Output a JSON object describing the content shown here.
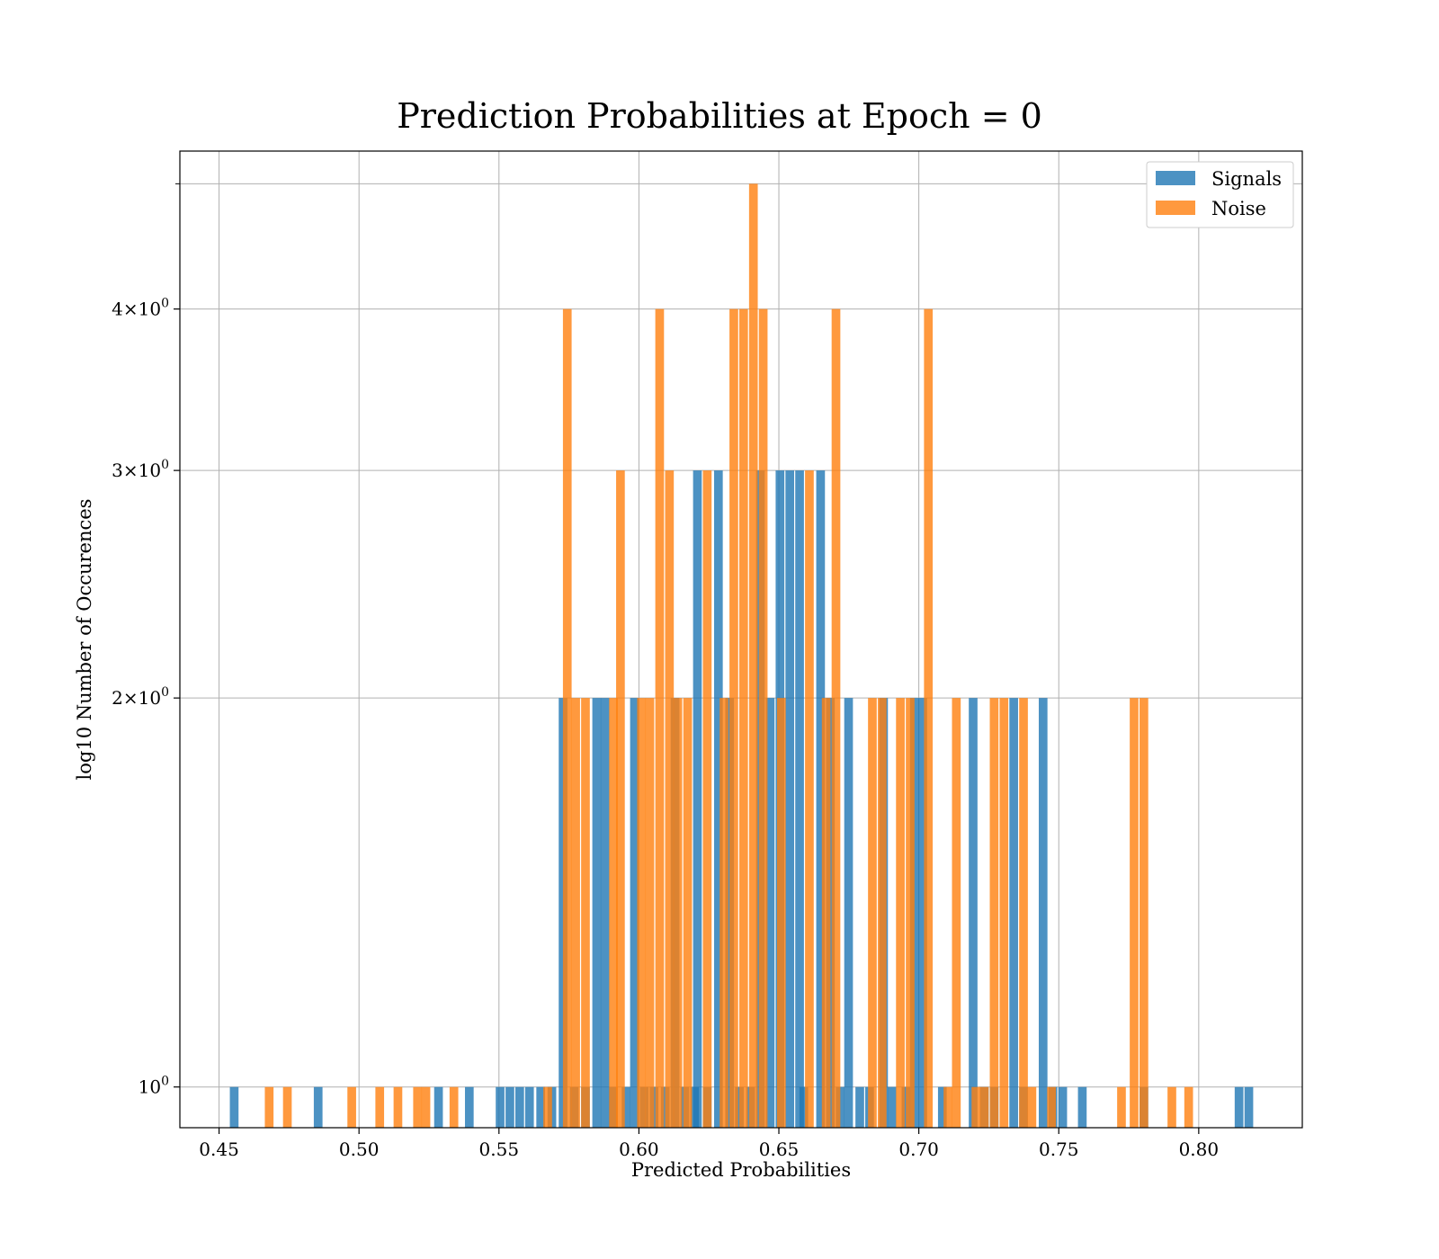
{
  "chart_data": {
    "type": "bar",
    "title": "Prediction Probabilities at Epoch = 0",
    "xlabel": "Predicted Probabilities",
    "ylabel": "log10 Number of Occurences",
    "xlim": [
      0.436,
      0.837
    ],
    "ylim": [
      0.93,
      5.3
    ],
    "yscale": "log",
    "grid": true,
    "legend_position": "top-right",
    "bin_width": 0.0033,
    "x_ticks": [
      0.45,
      0.5,
      0.55,
      0.6,
      0.65,
      0.7,
      0.75,
      0.8
    ],
    "x_tick_labels": [
      "0.45",
      "0.50",
      "0.55",
      "0.60",
      "0.65",
      "0.70",
      "0.75",
      "0.80"
    ],
    "y_ticks": [
      1,
      2,
      3,
      4
    ],
    "y_tick_labels": [
      {
        "mantissa": "",
        "exp": "0",
        "text": "10"
      },
      {
        "mantissa": "2",
        "exp": "0",
        "text": "×10"
      },
      {
        "mantissa": "3",
        "exp": "0",
        "text": "×10"
      },
      {
        "mantissa": "4",
        "exp": "0",
        "text": "×10"
      }
    ],
    "series": [
      {
        "name": "Signals",
        "color": "#1f77b4",
        "bins": [
          {
            "x": 0.4555,
            "count": 1
          },
          {
            "x": 0.4855,
            "count": 1
          },
          {
            "x": 0.5285,
            "count": 1
          },
          {
            "x": 0.5395,
            "count": 1
          },
          {
            "x": 0.5505,
            "count": 1
          },
          {
            "x": 0.554,
            "count": 1
          },
          {
            "x": 0.5575,
            "count": 1
          },
          {
            "x": 0.561,
            "count": 1
          },
          {
            "x": 0.565,
            "count": 1
          },
          {
            "x": 0.569,
            "count": 1
          },
          {
            "x": 0.573,
            "count": 2
          },
          {
            "x": 0.577,
            "count": 1
          },
          {
            "x": 0.581,
            "count": 1
          },
          {
            "x": 0.585,
            "count": 2
          },
          {
            "x": 0.588,
            "count": 2
          },
          {
            "x": 0.591,
            "count": 1
          },
          {
            "x": 0.5955,
            "count": 1
          },
          {
            "x": 0.5985,
            "count": 2
          },
          {
            "x": 0.602,
            "count": 1
          },
          {
            "x": 0.6055,
            "count": 1
          },
          {
            "x": 0.6095,
            "count": 1
          },
          {
            "x": 0.613,
            "count": 2
          },
          {
            "x": 0.6165,
            "count": 1
          },
          {
            "x": 0.62,
            "count": 1
          },
          {
            "x": 0.621,
            "count": 3
          },
          {
            "x": 0.6245,
            "count": 1
          },
          {
            "x": 0.6285,
            "count": 3
          },
          {
            "x": 0.6325,
            "count": 2
          },
          {
            "x": 0.636,
            "count": 1
          },
          {
            "x": 0.64,
            "count": 1
          },
          {
            "x": 0.6435,
            "count": 3
          },
          {
            "x": 0.647,
            "count": 2
          },
          {
            "x": 0.6505,
            "count": 3
          },
          {
            "x": 0.654,
            "count": 3
          },
          {
            "x": 0.6575,
            "count": 3
          },
          {
            "x": 0.659,
            "count": 1
          },
          {
            "x": 0.665,
            "count": 3
          },
          {
            "x": 0.6685,
            "count": 2
          },
          {
            "x": 0.672,
            "count": 1
          },
          {
            "x": 0.675,
            "count": 2
          },
          {
            "x": 0.679,
            "count": 1
          },
          {
            "x": 0.6825,
            "count": 1
          },
          {
            "x": 0.6875,
            "count": 2
          },
          {
            "x": 0.6905,
            "count": 1
          },
          {
            "x": 0.6955,
            "count": 1
          },
          {
            "x": 0.6985,
            "count": 2
          },
          {
            "x": 0.7015,
            "count": 2
          },
          {
            "x": 0.7085,
            "count": 1
          },
          {
            "x": 0.7195,
            "count": 2
          },
          {
            "x": 0.7235,
            "count": 1
          },
          {
            "x": 0.727,
            "count": 1
          },
          {
            "x": 0.734,
            "count": 2
          },
          {
            "x": 0.7375,
            "count": 1
          },
          {
            "x": 0.7445,
            "count": 2
          },
          {
            "x": 0.748,
            "count": 1
          },
          {
            "x": 0.7515,
            "count": 1
          },
          {
            "x": 0.7585,
            "count": 1
          },
          {
            "x": 0.7805,
            "count": 1
          },
          {
            "x": 0.8145,
            "count": 1
          },
          {
            "x": 0.818,
            "count": 1
          }
        ]
      },
      {
        "name": "Noise",
        "color": "#ff7f0e",
        "bins": [
          {
            "x": 0.468,
            "count": 1
          },
          {
            "x": 0.4745,
            "count": 1
          },
          {
            "x": 0.4975,
            "count": 1
          },
          {
            "x": 0.5075,
            "count": 1
          },
          {
            "x": 0.514,
            "count": 1
          },
          {
            "x": 0.521,
            "count": 1
          },
          {
            "x": 0.524,
            "count": 1
          },
          {
            "x": 0.534,
            "count": 1
          },
          {
            "x": 0.5675,
            "count": 1
          },
          {
            "x": 0.5745,
            "count": 4
          },
          {
            "x": 0.5775,
            "count": 2
          },
          {
            "x": 0.581,
            "count": 2
          },
          {
            "x": 0.591,
            "count": 2
          },
          {
            "x": 0.5935,
            "count": 3
          },
          {
            "x": 0.601,
            "count": 2
          },
          {
            "x": 0.604,
            "count": 2
          },
          {
            "x": 0.6075,
            "count": 4
          },
          {
            "x": 0.611,
            "count": 3
          },
          {
            "x": 0.614,
            "count": 2
          },
          {
            "x": 0.6175,
            "count": 2
          },
          {
            "x": 0.6245,
            "count": 3
          },
          {
            "x": 0.6305,
            "count": 2
          },
          {
            "x": 0.634,
            "count": 4
          },
          {
            "x": 0.6375,
            "count": 4
          },
          {
            "x": 0.641,
            "count": 5
          },
          {
            "x": 0.6445,
            "count": 4
          },
          {
            "x": 0.651,
            "count": 2
          },
          {
            "x": 0.661,
            "count": 3
          },
          {
            "x": 0.667,
            "count": 2
          },
          {
            "x": 0.6705,
            "count": 4
          },
          {
            "x": 0.6835,
            "count": 2
          },
          {
            "x": 0.687,
            "count": 2
          },
          {
            "x": 0.6935,
            "count": 2
          },
          {
            "x": 0.697,
            "count": 2
          },
          {
            "x": 0.7035,
            "count": 4
          },
          {
            "x": 0.7105,
            "count": 1
          },
          {
            "x": 0.7135,
            "count": 2
          },
          {
            "x": 0.7205,
            "count": 1
          },
          {
            "x": 0.7235,
            "count": 1
          },
          {
            "x": 0.727,
            "count": 2
          },
          {
            "x": 0.7305,
            "count": 2
          },
          {
            "x": 0.7375,
            "count": 2
          },
          {
            "x": 0.7405,
            "count": 1
          },
          {
            "x": 0.7475,
            "count": 1
          },
          {
            "x": 0.7725,
            "count": 1
          },
          {
            "x": 0.777,
            "count": 2
          },
          {
            "x": 0.7805,
            "count": 2
          },
          {
            "x": 0.7905,
            "count": 1
          },
          {
            "x": 0.7965,
            "count": 1
          }
        ]
      }
    ]
  }
}
